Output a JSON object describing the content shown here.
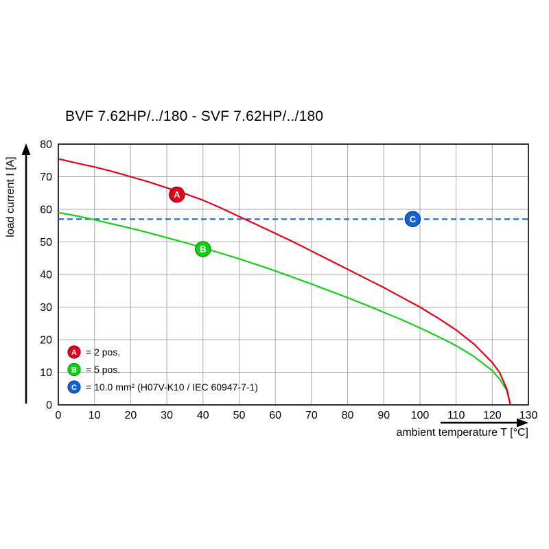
{
  "chart_data": {
    "type": "line",
    "title": "BVF 7.62HP/../180 - SVF 7.62HP/../180",
    "xlabel": "ambient temperature T [°C]",
    "ylabel": "load current I [A]",
    "xlim": [
      0,
      130
    ],
    "ylim": [
      0,
      80
    ],
    "x_ticks": [
      0,
      10,
      20,
      30,
      40,
      50,
      60,
      70,
      80,
      90,
      100,
      110,
      120,
      130
    ],
    "y_ticks": [
      0,
      10,
      20,
      30,
      40,
      50,
      60,
      70,
      80
    ],
    "grid": true,
    "grid_color": "#a9a9a9",
    "axis_color": "#000000",
    "legend_position": "lower-left",
    "series": [
      {
        "name": "A",
        "label": "= 2 pos.",
        "color": "#e2001a",
        "edge_color": "#9c0012",
        "style": "solid",
        "x": [
          0,
          5,
          10,
          15,
          20,
          25,
          30,
          35,
          40,
          45,
          50,
          55,
          60,
          65,
          70,
          75,
          80,
          85,
          90,
          95,
          100,
          105,
          110,
          115,
          120,
          122,
          124,
          125
        ],
        "y": [
          75.5,
          74.2,
          73,
          71.6,
          70,
          68.4,
          66.6,
          64.8,
          62.8,
          60.4,
          57.8,
          55.2,
          52.6,
          50,
          47.2,
          44.4,
          41.6,
          38.8,
          36,
          33,
          30,
          26.6,
          23,
          18.6,
          13,
          10,
          5,
          0
        ],
        "marker": {
          "letter": "A",
          "x": 32.8,
          "y": 64.5
        }
      },
      {
        "name": "B",
        "label": "= 5 pos.",
        "color": "#14d014",
        "edge_color": "#0a930a",
        "style": "solid",
        "x": [
          0,
          5,
          10,
          15,
          20,
          25,
          30,
          35,
          40,
          45,
          50,
          55,
          60,
          65,
          70,
          75,
          80,
          85,
          90,
          95,
          100,
          105,
          110,
          115,
          120,
          122,
          124,
          125
        ],
        "y": [
          59,
          58,
          56.8,
          55.5,
          54.2,
          52.8,
          51.3,
          49.8,
          48.2,
          46.5,
          44.8,
          43,
          41.1,
          39.1,
          37.1,
          35,
          32.9,
          30.7,
          28.4,
          26.1,
          23.6,
          21,
          18.2,
          14.8,
          10.5,
          8,
          4.5,
          0
        ],
        "marker": {
          "letter": "B",
          "x": 40,
          "y": 47.8
        }
      },
      {
        "name": "C",
        "label": "= 10.0 mm² (H07V-K10 / IEC 60947-7-1)",
        "color": "#1563d5",
        "edge_color": "#0c3f98",
        "style": "dashed",
        "x": [
          0,
          130
        ],
        "y": [
          57,
          57
        ],
        "marker": {
          "letter": "C",
          "x": 98,
          "y": 57
        }
      }
    ]
  }
}
